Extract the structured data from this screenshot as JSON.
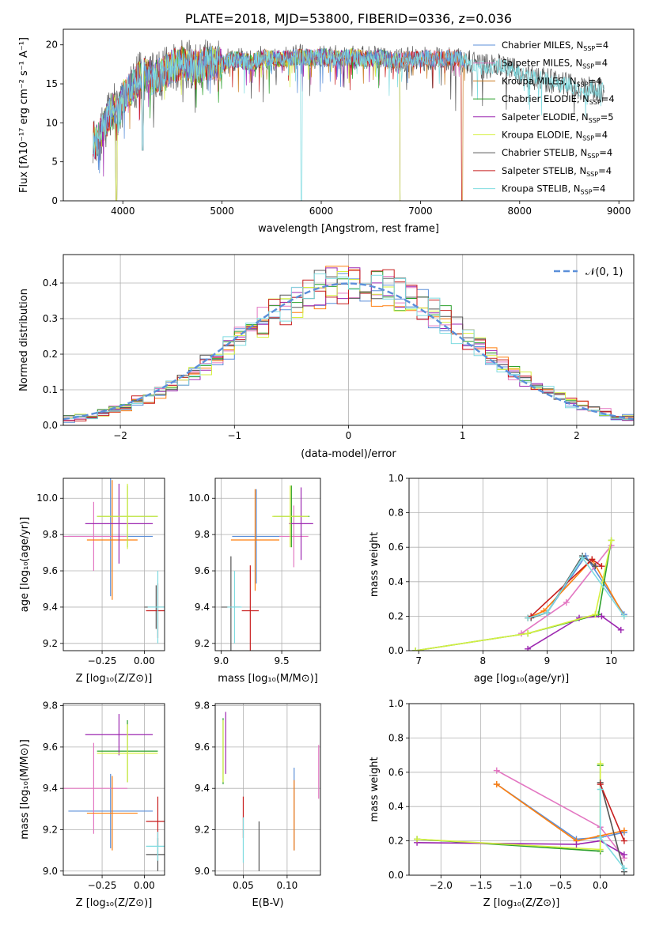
{
  "colors": {
    "chabrier_miles": "#5b8fd9",
    "salpeter_miles": "#e377c2",
    "kroupa_miles": "#c97a1e",
    "chabrier_elodie": "#2ca02c",
    "salpeter_elodie": "#9c27b0",
    "kroupa_elodie": "#d6f041",
    "chabrier_stelib": "#555555",
    "salpeter_stelib": "#c81e1e",
    "kroupa_stelib": "#7fdbe0",
    "orange": "#ff7f0e",
    "normal_curve": "#5b8fd9"
  },
  "chart_data": [
    {
      "id": "spectrum",
      "type": "line",
      "title": "PLATE=2018, MJD=53800, FIBERID=0336, z=0.036",
      "xlabel": "wavelength [Angstrom, rest frame]",
      "ylabel": "Flux [fλ10⁻¹⁷ erg cm⁻² s⁻¹ A⁻¹]",
      "xlim": [
        3400,
        9150
      ],
      "ylim": [
        0,
        22
      ],
      "xticks": [
        4000,
        5000,
        6000,
        7000,
        8000,
        9000
      ],
      "yticks": [
        0,
        5,
        10,
        15,
        20
      ],
      "grid": false,
      "legend_position": "top-right",
      "envelope": {
        "x": [
          3700,
          3720,
          3750,
          3800,
          3850,
          3900,
          3950,
          4000,
          4100,
          4200,
          4300,
          4400,
          4500,
          4600,
          4700,
          4800,
          4900,
          5000,
          5100,
          5200,
          5300,
          5400,
          5500,
          5600,
          5700,
          5800,
          5900,
          6000,
          6100,
          6200,
          6300,
          6400,
          6500,
          6600,
          6700,
          6800,
          6900,
          7000,
          7100,
          7200,
          7300,
          7400,
          7500,
          7600,
          7700,
          7800,
          7900,
          8000,
          8200,
          8400,
          8600,
          8800
        ],
        "y": [
          9.5,
          8.8,
          9.0,
          10.5,
          12.0,
          13.5,
          12.0,
          14.5,
          16.0,
          17.5,
          17.0,
          17.5,
          18.5,
          19.0,
          18.5,
          18.7,
          19.0,
          18.8,
          19.5,
          19.3,
          19.0,
          19.7,
          19.5,
          19.5,
          19.6,
          19.8,
          19.6,
          19.8,
          19.7,
          19.5,
          19.8,
          19.6,
          19.5,
          19.7,
          19.3,
          19.3,
          19.5,
          19.5,
          19.6,
          19.4,
          19.7,
          19.5,
          19.0,
          18.5,
          18.6,
          18.7,
          18.3,
          17.5,
          17.0,
          16.3,
          15.8,
          15.5
        ]
      },
      "dips": [
        [
          3935,
          0
        ],
        [
          4200,
          6.5
        ],
        [
          5800,
          0
        ],
        [
          6800,
          0
        ],
        [
          7420,
          0
        ]
      ],
      "series": [
        {
          "name": "Chabrier MILES, N",
          "sub": "SSP",
          "suffix": "=4",
          "color_key": "chabrier_miles"
        },
        {
          "name": "Salpeter MILES, N",
          "sub": "SSP",
          "suffix": "=4",
          "color_key": "salpeter_miles"
        },
        {
          "name": "Kroupa MILES, N",
          "sub": "SSP",
          "suffix": "=4",
          "color_key": "kroupa_miles"
        },
        {
          "name": "Chabrier ELODIE, N",
          "sub": "SSP",
          "suffix": "=4",
          "color_key": "chabrier_elodie"
        },
        {
          "name": "Salpeter ELODIE, N",
          "sub": "SSP",
          "suffix": "=5",
          "color_key": "salpeter_elodie"
        },
        {
          "name": "Kroupa ELODIE, N",
          "sub": "SSP",
          "suffix": "=4",
          "color_key": "kroupa_elodie"
        },
        {
          "name": "Chabrier STELIB, N",
          "sub": "SSP",
          "suffix": "=4",
          "color_key": "chabrier_stelib"
        },
        {
          "name": "Salpeter STELIB, N",
          "sub": "SSP",
          "suffix": "=4",
          "color_key": "salpeter_stelib"
        },
        {
          "name": "Kroupa STELIB, N",
          "sub": "SSP",
          "suffix": "=4",
          "color_key": "kroupa_stelib"
        }
      ]
    },
    {
      "id": "residuals",
      "type": "step",
      "xlabel": "(data-model)/error",
      "ylabel": "Normed distribution",
      "xlim": [
        -2.5,
        2.5
      ],
      "ylim": [
        0,
        0.48
      ],
      "xticks": [
        -2,
        -1,
        0,
        1,
        2
      ],
      "xticklabels": [
        "−2",
        "−1",
        "0",
        "1",
        "2"
      ],
      "yticks": [
        0,
        0.1,
        0.2,
        0.3,
        0.4
      ],
      "yticklabels": [
        "0.0",
        "0.1",
        "0.2",
        "0.3",
        "0.4"
      ],
      "grid": true,
      "legend_position": "top-right",
      "curve_label": "𝒩(0, 1)",
      "curve": "standard normal pdf",
      "bin_width": 0.1,
      "series_colors": [
        "chabrier_miles",
        "salpeter_miles",
        "orange",
        "chabrier_elodie",
        "salpeter_elodie",
        "kroupa_elodie",
        "chabrier_stelib",
        "salpeter_stelib",
        "kroupa_stelib"
      ]
    },
    {
      "id": "age_vs_Z",
      "type": "errorbar",
      "xlabel": "Z [log₁₀(Z/Z⊙)]",
      "ylabel": "age  [log₁₀(age/yr)]",
      "xlim": [
        -0.48,
        0.12
      ],
      "ylim": [
        9.16,
        10.11
      ],
      "xticks": [
        -0.25,
        0.0
      ],
      "xticklabels": [
        "−0.25",
        "0.00"
      ],
      "yticks": [
        9.2,
        9.4,
        9.6,
        9.8,
        10.0
      ],
      "yticklabels": [
        "9.2",
        "9.4",
        "9.6",
        "9.8",
        "10.0"
      ],
      "grid": true,
      "points": [
        {
          "c": "chabrier_miles",
          "x": -0.2,
          "xerr": 0.25,
          "y": 9.79,
          "yerr": 0.33
        },
        {
          "c": "salpeter_miles",
          "x": -0.3,
          "xerr": 0.2,
          "y": 9.79,
          "yerr": 0.19
        },
        {
          "c": "orange",
          "x": -0.19,
          "xerr": 0.15,
          "y": 9.77,
          "yerr": 0.33
        },
        {
          "c": "chabrier_elodie",
          "x": -0.1,
          "xerr": 0.18,
          "y": 9.9,
          "yerr": 0.17
        },
        {
          "c": "salpeter_elodie",
          "x": -0.15,
          "xerr": 0.2,
          "y": 9.86,
          "yerr": 0.22
        },
        {
          "c": "kroupa_elodie",
          "x": -0.1,
          "xerr": 0.18,
          "y": 9.9,
          "yerr": 0.18
        },
        {
          "c": "chabrier_stelib",
          "x": 0.07,
          "xerr": 0.07,
          "y": 9.4,
          "yerr": 0.12
        },
        {
          "c": "salpeter_stelib",
          "x": 0.08,
          "xerr": 0.07,
          "y": 9.38,
          "yerr": 0.15
        },
        {
          "c": "kroupa_stelib",
          "x": 0.08,
          "xerr": 0.06,
          "y": 9.4,
          "yerr": 0.2
        }
      ]
    },
    {
      "id": "age_vs_mass",
      "type": "errorbar",
      "xlabel": "mass [log₁₀(M/M⊙)]",
      "ylabel": "",
      "xlim": [
        8.95,
        9.82
      ],
      "ylim": [
        9.16,
        10.11
      ],
      "xticks": [
        9.0,
        9.5
      ],
      "xticklabels": [
        "9.0",
        "9.5"
      ],
      "yticks": [
        9.2,
        9.4,
        9.6,
        9.8,
        10.0
      ],
      "yticklabels": [
        "9.2",
        "9.4",
        "9.6",
        "9.8",
        "10.0"
      ],
      "grid": true,
      "points": [
        {
          "c": "chabrier_miles",
          "x": 9.29,
          "xerr": 0.2,
          "y": 9.79,
          "yerr": 0.26
        },
        {
          "c": "salpeter_miles",
          "x": 9.6,
          "xerr": 0.12,
          "y": 9.79,
          "yerr": 0.17
        },
        {
          "c": "orange",
          "x": 9.28,
          "xerr": 0.2,
          "y": 9.77,
          "yerr": 0.28
        },
        {
          "c": "chabrier_elodie",
          "x": 9.58,
          "xerr": 0.15,
          "y": 9.9,
          "yerr": 0.17
        },
        {
          "c": "salpeter_elodie",
          "x": 9.66,
          "xerr": 0.1,
          "y": 9.86,
          "yerr": 0.2
        },
        {
          "c": "kroupa_elodie",
          "x": 9.57,
          "xerr": 0.15,
          "y": 9.9,
          "yerr": 0.17
        },
        {
          "c": "chabrier_stelib",
          "x": 9.08,
          "xerr": 0.08,
          "y": 9.4,
          "yerr": 0.28
        },
        {
          "c": "salpeter_stelib",
          "x": 9.24,
          "xerr": 0.07,
          "y": 9.38,
          "yerr": 0.25
        },
        {
          "c": "kroupa_stelib",
          "x": 9.11,
          "xerr": 0.06,
          "y": 9.4,
          "yerr": 0.2
        }
      ]
    },
    {
      "id": "weight_vs_age",
      "type": "line",
      "xlabel": "age  [log₁₀(age/yr)]",
      "ylabel": "mass weight",
      "xlim": [
        6.85,
        10.35
      ],
      "ylim": [
        0,
        1.0
      ],
      "xticks": [
        7,
        8,
        9,
        10
      ],
      "xticklabels": [
        "7",
        "8",
        "9",
        "10"
      ],
      "yticks": [
        0,
        0.2,
        0.4,
        0.6,
        0.8,
        1.0
      ],
      "yticklabels": [
        "0.0",
        "0.2",
        "0.4",
        "0.6",
        "0.8",
        "1.0"
      ],
      "grid": true,
      "series": [
        {
          "c": "chabrier_miles",
          "x": [
            8.7,
            9.0,
            9.6,
            10.2
          ],
          "y": [
            0.19,
            0.22,
            0.55,
            0.21
          ]
        },
        {
          "c": "salpeter_miles",
          "x": [
            8.6,
            9.3,
            10.0
          ],
          "y": [
            0.1,
            0.28,
            0.61
          ]
        },
        {
          "c": "orange",
          "x": [
            8.7,
            8.95,
            9.7,
            10.2
          ],
          "y": [
            0.19,
            0.23,
            0.53,
            0.2
          ]
        },
        {
          "c": "chabrier_elodie",
          "x": [
            6.95,
            8.7,
            9.8,
            10.0
          ],
          "y": [
            0.0,
            0.1,
            0.21,
            0.64
          ]
        },
        {
          "c": "salpeter_elodie",
          "x": [
            8.7,
            9.5,
            9.85,
            10.15
          ],
          "y": [
            0.01,
            0.19,
            0.2,
            0.12
          ]
        },
        {
          "c": "kroupa_elodie",
          "x": [
            6.95,
            8.7,
            9.75,
            10.0
          ],
          "y": [
            0.0,
            0.1,
            0.21,
            0.64
          ]
        },
        {
          "c": "chabrier_stelib",
          "x": [
            8.75,
            9.0,
            9.55,
            9.75
          ],
          "y": [
            0.19,
            0.22,
            0.55,
            0.49
          ]
        },
        {
          "c": "salpeter_stelib",
          "x": [
            8.75,
            9.7,
            9.85
          ],
          "y": [
            0.2,
            0.53,
            0.49
          ]
        },
        {
          "c": "kroupa_stelib",
          "x": [
            8.7,
            9.0,
            9.55,
            10.2
          ],
          "y": [
            0.19,
            0.22,
            0.54,
            0.2
          ]
        }
      ]
    },
    {
      "id": "mass_vs_Z",
      "type": "errorbar",
      "xlabel": "Z [log₁₀(Z/Z⊙)]",
      "ylabel": "mass [log₁₀(M/M⊙)]",
      "xlim": [
        -0.48,
        0.12
      ],
      "ylim": [
        8.98,
        9.81
      ],
      "xticks": [
        -0.25,
        0.0
      ],
      "xticklabels": [
        "−0.25",
        "0.00"
      ],
      "yticks": [
        9.0,
        9.2,
        9.4,
        9.6,
        9.8
      ],
      "yticklabels": [
        "9.0",
        "9.2",
        "9.4",
        "9.6",
        "9.8"
      ],
      "grid": true,
      "points": [
        {
          "c": "chabrier_miles",
          "x": -0.2,
          "xerr": 0.25,
          "y": 9.29,
          "yerr": 0.18
        },
        {
          "c": "salpeter_miles",
          "x": -0.3,
          "xerr": 0.2,
          "y": 9.4,
          "yerr": 0.22
        },
        {
          "c": "orange",
          "x": -0.19,
          "xerr": 0.15,
          "y": 9.28,
          "yerr": 0.18
        },
        {
          "c": "chabrier_elodie",
          "x": -0.1,
          "xerr": 0.18,
          "y": 9.58,
          "yerr": 0.15
        },
        {
          "c": "salpeter_elodie",
          "x": -0.15,
          "xerr": 0.2,
          "y": 9.66,
          "yerr": 0.1
        },
        {
          "c": "kroupa_elodie",
          "x": -0.1,
          "xerr": 0.18,
          "y": 9.57,
          "yerr": 0.14
        },
        {
          "c": "chabrier_stelib",
          "x": 0.08,
          "xerr": 0.07,
          "y": 9.08,
          "yerr": 0.08
        },
        {
          "c": "salpeter_stelib",
          "x": 0.08,
          "xerr": 0.07,
          "y": 9.24,
          "yerr": 0.12
        },
        {
          "c": "kroupa_stelib",
          "x": 0.08,
          "xerr": 0.07,
          "y": 9.12,
          "yerr": 0.07
        }
      ]
    },
    {
      "id": "mass_vs_EBV",
      "type": "errorbar",
      "xlabel": "E(B-V)",
      "ylabel": "",
      "xlim": [
        0.018,
        0.138
      ],
      "ylim": [
        8.98,
        9.81
      ],
      "xticks": [
        0.05,
        0.1
      ],
      "xticklabels": [
        "0.05",
        "0.10"
      ],
      "yticks": [
        9.0,
        9.2,
        9.4,
        9.6,
        9.8
      ],
      "yticklabels": [
        "9.0",
        "9.2",
        "9.4",
        "9.6",
        "9.8"
      ],
      "grid": true,
      "points": [
        {
          "c": "chabrier_miles",
          "x": 0.108,
          "xerr": 0,
          "y": 9.3,
          "yerr": 0.2
        },
        {
          "c": "salpeter_miles",
          "x": 0.136,
          "xerr": 0,
          "y": 9.48,
          "yerr": 0.13
        },
        {
          "c": "orange",
          "x": 0.108,
          "xerr": 0,
          "y": 9.27,
          "yerr": 0.17
        },
        {
          "c": "chabrier_elodie",
          "x": 0.027,
          "xerr": 0,
          "y": 9.58,
          "yerr": 0.16
        },
        {
          "c": "salpeter_elodie",
          "x": 0.03,
          "xerr": 0,
          "y": 9.62,
          "yerr": 0.15
        },
        {
          "c": "kroupa_elodie",
          "x": 0.027,
          "xerr": 0,
          "y": 9.58,
          "yerr": 0.15
        },
        {
          "c": "chabrier_stelib",
          "x": 0.068,
          "xerr": 0,
          "y": 9.12,
          "yerr": 0.12
        },
        {
          "c": "salpeter_stelib",
          "x": 0.05,
          "xerr": 0,
          "y": 9.26,
          "yerr": 0.1
        },
        {
          "c": "kroupa_stelib",
          "x": 0.05,
          "xerr": 0,
          "y": 9.15,
          "yerr": 0.11
        }
      ]
    },
    {
      "id": "weight_vs_Z",
      "type": "line",
      "xlabel": "Z [log₁₀(Z/Z⊙)]",
      "ylabel": "mass weight",
      "xlim": [
        -2.4,
        0.42
      ],
      "ylim": [
        0,
        1.0
      ],
      "xticks": [
        -2.0,
        -1.5,
        -1.0,
        -0.5,
        0.0
      ],
      "xticklabels": [
        "−2.0",
        "−1.5",
        "−1.0",
        "−0.5",
        "0.0"
      ],
      "yticks": [
        0,
        0.2,
        0.4,
        0.6,
        0.8,
        1.0
      ],
      "yticklabels": [
        "0.0",
        "0.2",
        "0.4",
        "0.6",
        "0.8",
        "1.0"
      ],
      "grid": true,
      "series": [
        {
          "c": "chabrier_miles",
          "x": [
            -1.3,
            -0.3,
            0.0,
            0.3
          ],
          "y": [
            0.53,
            0.21,
            0.22,
            0.25
          ]
        },
        {
          "c": "salpeter_miles",
          "x": [
            -1.3,
            0.0,
            0.3
          ],
          "y": [
            0.61,
            0.28,
            0.1
          ]
        },
        {
          "c": "orange",
          "x": [
            -1.3,
            -0.3,
            0.0,
            0.3
          ],
          "y": [
            0.53,
            0.2,
            0.23,
            0.26
          ]
        },
        {
          "c": "chabrier_elodie",
          "x": [
            -2.3,
            0.0,
            0.0
          ],
          "y": [
            0.21,
            0.14,
            0.64
          ]
        },
        {
          "c": "salpeter_elodie",
          "x": [
            -2.3,
            -0.3,
            0.0,
            0.3
          ],
          "y": [
            0.19,
            0.18,
            0.2,
            0.12
          ]
        },
        {
          "c": "kroupa_elodie",
          "x": [
            -2.3,
            0.0,
            0.0
          ],
          "y": [
            0.21,
            0.15,
            0.65
          ]
        },
        {
          "c": "chabrier_stelib",
          "x": [
            0.0,
            0.3
          ],
          "y": [
            0.54,
            0.02
          ]
        },
        {
          "c": "salpeter_stelib",
          "x": [
            0.0,
            0.3
          ],
          "y": [
            0.53,
            0.2
          ]
        },
        {
          "c": "kroupa_stelib",
          "x": [
            0.0,
            0.0,
            0.3
          ],
          "y": [
            0.5,
            0.22,
            0.04
          ]
        }
      ]
    }
  ]
}
